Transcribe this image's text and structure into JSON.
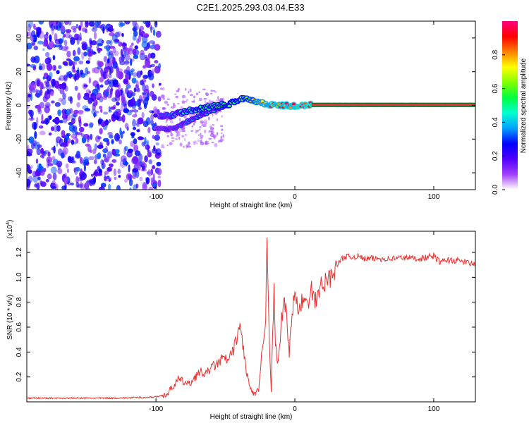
{
  "title": "C2E1.2025.293.03.04.E33",
  "colors": {
    "axis": "#000000",
    "snr_line": "#e8312e",
    "track_core": "#f0303a",
    "track_edge": "#1e6e2e"
  },
  "chart_data": [
    {
      "type": "heatmap",
      "xlabel": "Height of straight line (km)",
      "ylabel": "Frequency (Hz)",
      "xlim": [
        -193,
        130
      ],
      "ylim": [
        -50,
        50
      ],
      "x_ticks": [
        -100,
        0,
        100
      ],
      "x_tick_labels": [
        "-100",
        "0",
        "100"
      ],
      "y_ticks": [
        -40,
        -20,
        0,
        20,
        40
      ],
      "y_tick_labels": [
        "-40",
        "-20",
        "0",
        "20",
        "40"
      ],
      "noise_region_x": [
        -193,
        -97
      ],
      "main_track": {
        "x": [
          -97,
          -90,
          -80,
          -72,
          -64,
          -56,
          -48,
          -42,
          -36,
          -30,
          -24,
          -18,
          -12,
          -6,
          0,
          6,
          12,
          130
        ],
        "y": [
          -6.5,
          -6,
          -4,
          -2.5,
          -1.5,
          0,
          0.5,
          3,
          4.5,
          3,
          1.5,
          0.5,
          0,
          0,
          -0.5,
          0,
          0.3,
          0.3
        ],
        "amplitude": [
          0.3,
          0.35,
          0.45,
          0.5,
          0.55,
          0.55,
          0.6,
          0.6,
          0.65,
          0.7,
          0.8,
          0.85,
          0.9,
          0.9,
          0.92,
          0.95,
          0.97,
          1.0
        ]
      },
      "lower_branch": {
        "x": [
          -100,
          -92,
          -86,
          -80,
          -74,
          -68,
          -62,
          -56,
          -50
        ],
        "y": [
          -14,
          -14,
          -13,
          -11,
          -8,
          -6,
          -4,
          -2,
          -0.5
        ],
        "amplitude": [
          0.25,
          0.3,
          0.3,
          0.35,
          0.35,
          0.4,
          0.4,
          0.4,
          0.45
        ]
      },
      "colorbar": {
        "label": "Normalized spectral amplitude",
        "range": [
          0,
          1
        ],
        "ticks": [
          0.0,
          0.2,
          0.4,
          0.6,
          0.8
        ],
        "tick_labels": [
          "0.0",
          "0.2",
          "0.4",
          "0.6",
          "0.8"
        ],
        "colormap": [
          "#ffffff",
          "#a040ff",
          "#5000ff",
          "#0000ff",
          "#00a0ff",
          "#00ffd0",
          "#00ff40",
          "#80ff00",
          "#ffff00",
          "#ff8000",
          "#ff0000",
          "#ff0080"
        ]
      }
    },
    {
      "type": "line",
      "xlabel": "Height of straight line (km)",
      "ylabel": "SNR (10 * v/v)",
      "y_scale_label": "(x10",
      "y_scale_exp": "4",
      "y_scale_close": ")",
      "xlim": [
        -193,
        130
      ],
      "ylim": [
        0,
        1.37
      ],
      "x_ticks": [
        -100,
        0,
        100
      ],
      "x_tick_labels": [
        "-100",
        "0",
        "100"
      ],
      "y_ticks": [
        0.2,
        0.4,
        0.6,
        0.8,
        1.0,
        1.2
      ],
      "y_tick_labels": [
        "0.2",
        "0.4",
        "0.6",
        "0.8",
        "1.0",
        "1.2"
      ],
      "series": [
        {
          "name": "SNR",
          "x": [
            -193,
            -170,
            -150,
            -130,
            -110,
            -100,
            -92,
            -88,
            -84,
            -80,
            -76,
            -72,
            -68,
            -64,
            -60,
            -56,
            -52,
            -48,
            -44,
            -41,
            -39,
            -37,
            -35,
            -32,
            -29,
            -26,
            -24,
            -22,
            -21,
            -20,
            -19,
            -18,
            -17,
            -16,
            -15,
            -14,
            -12,
            -10,
            -8,
            -6,
            -4,
            -2,
            0,
            2,
            4,
            6,
            8,
            10,
            12,
            14,
            16,
            18,
            20,
            22,
            24,
            26,
            28,
            30,
            32,
            34,
            36,
            40,
            45,
            50,
            60,
            70,
            80,
            90,
            100,
            105,
            110,
            120,
            130
          ],
          "y": [
            0.03,
            0.03,
            0.03,
            0.03,
            0.035,
            0.04,
            0.06,
            0.12,
            0.18,
            0.16,
            0.14,
            0.2,
            0.24,
            0.22,
            0.28,
            0.3,
            0.35,
            0.33,
            0.42,
            0.55,
            0.6,
            0.42,
            0.25,
            0.1,
            0.05,
            0.1,
            0.35,
            0.5,
            0.7,
            1.37,
            0.8,
            0.4,
            0.1,
            0.55,
            0.88,
            0.45,
            0.3,
            0.6,
            0.82,
            0.7,
            0.4,
            0.72,
            0.85,
            0.76,
            0.73,
            0.86,
            0.78,
            0.78,
            0.9,
            0.8,
            0.82,
            0.95,
            0.9,
            0.96,
            1.0,
            1.0,
            1.06,
            1.1,
            1.12,
            1.15,
            1.17,
            1.16,
            1.17,
            1.15,
            1.15,
            1.15,
            1.16,
            1.15,
            1.17,
            1.12,
            1.14,
            1.13,
            1.1
          ]
        }
      ]
    }
  ]
}
